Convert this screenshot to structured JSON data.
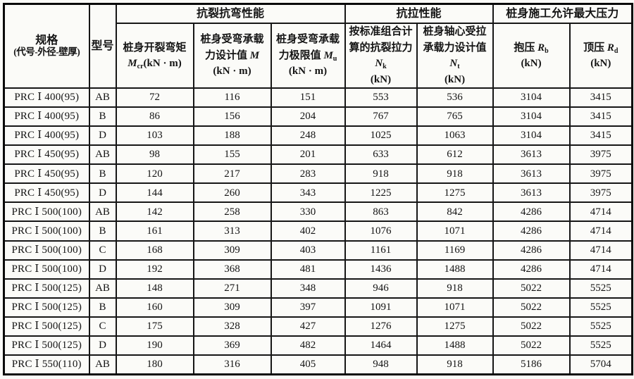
{
  "table": {
    "spec_header": {
      "line1": "规格",
      "line2": "(代号-外径-壁厚)"
    },
    "model_header": "型号",
    "groups": [
      {
        "label": "抗裂抗弯性能"
      },
      {
        "label": "抗拉性能"
      },
      {
        "label": "桩身施工允许最大压力"
      }
    ],
    "columns": [
      {
        "label": "桩身开裂弯矩",
        "symbol": "M",
        "sub": "cr",
        "unit": "(kN · m)"
      },
      {
        "label": "桩身受弯承载力设计值",
        "symbol": "M",
        "sub": "",
        "unit": "(kN · m)"
      },
      {
        "label": "桩身受弯承载力极限值",
        "symbol": "M",
        "sub": "u",
        "unit": "(kN · m)"
      },
      {
        "label": "按标准组合计算的抗裂拉力",
        "symbol": "N",
        "sub": "k",
        "unit": "(kN)"
      },
      {
        "label": "桩身轴心受拉承载力设计值",
        "symbol": "N",
        "sub": "t",
        "unit": "(kN)"
      },
      {
        "label": "抱压",
        "symbol": "R",
        "sub": "b",
        "unit": "(kN)"
      },
      {
        "label": "顶压",
        "symbol": "R",
        "sub": "d",
        "unit": "(kN)"
      }
    ],
    "rows": [
      [
        "PRC Ⅰ 400(95)",
        "AB",
        "72",
        "116",
        "151",
        "553",
        "536",
        "3104",
        "3415"
      ],
      [
        "PRC Ⅰ 400(95)",
        "B",
        "86",
        "156",
        "204",
        "767",
        "765",
        "3104",
        "3415"
      ],
      [
        "PRC Ⅰ 400(95)",
        "D",
        "103",
        "188",
        "248",
        "1025",
        "1063",
        "3104",
        "3415"
      ],
      [
        "PRC Ⅰ 450(95)",
        "AB",
        "98",
        "155",
        "201",
        "633",
        "612",
        "3613",
        "3975"
      ],
      [
        "PRC Ⅰ 450(95)",
        "B",
        "120",
        "217",
        "283",
        "918",
        "918",
        "3613",
        "3975"
      ],
      [
        "PRC Ⅰ 450(95)",
        "D",
        "144",
        "260",
        "343",
        "1225",
        "1275",
        "3613",
        "3975"
      ],
      [
        "PRC Ⅰ 500(100)",
        "AB",
        "142",
        "258",
        "330",
        "863",
        "842",
        "4286",
        "4714"
      ],
      [
        "PRC Ⅰ 500(100)",
        "B",
        "161",
        "313",
        "402",
        "1076",
        "1071",
        "4286",
        "4714"
      ],
      [
        "PRC Ⅰ 500(100)",
        "C",
        "168",
        "309",
        "403",
        "1161",
        "1169",
        "4286",
        "4714"
      ],
      [
        "PRC Ⅰ 500(100)",
        "D",
        "192",
        "368",
        "481",
        "1436",
        "1488",
        "4286",
        "4714"
      ],
      [
        "PRC Ⅰ 500(125)",
        "AB",
        "148",
        "271",
        "348",
        "946",
        "918",
        "5022",
        "5525"
      ],
      [
        "PRC Ⅰ 500(125)",
        "B",
        "160",
        "309",
        "397",
        "1091",
        "1071",
        "5022",
        "5525"
      ],
      [
        "PRC Ⅰ 500(125)",
        "C",
        "175",
        "328",
        "427",
        "1276",
        "1275",
        "5022",
        "5525"
      ],
      [
        "PRC Ⅰ 500(125)",
        "D",
        "190",
        "369",
        "482",
        "1464",
        "1488",
        "5022",
        "5525"
      ],
      [
        "PRC Ⅰ 550(110)",
        "AB",
        "180",
        "316",
        "405",
        "948",
        "918",
        "5186",
        "5704"
      ]
    ]
  }
}
